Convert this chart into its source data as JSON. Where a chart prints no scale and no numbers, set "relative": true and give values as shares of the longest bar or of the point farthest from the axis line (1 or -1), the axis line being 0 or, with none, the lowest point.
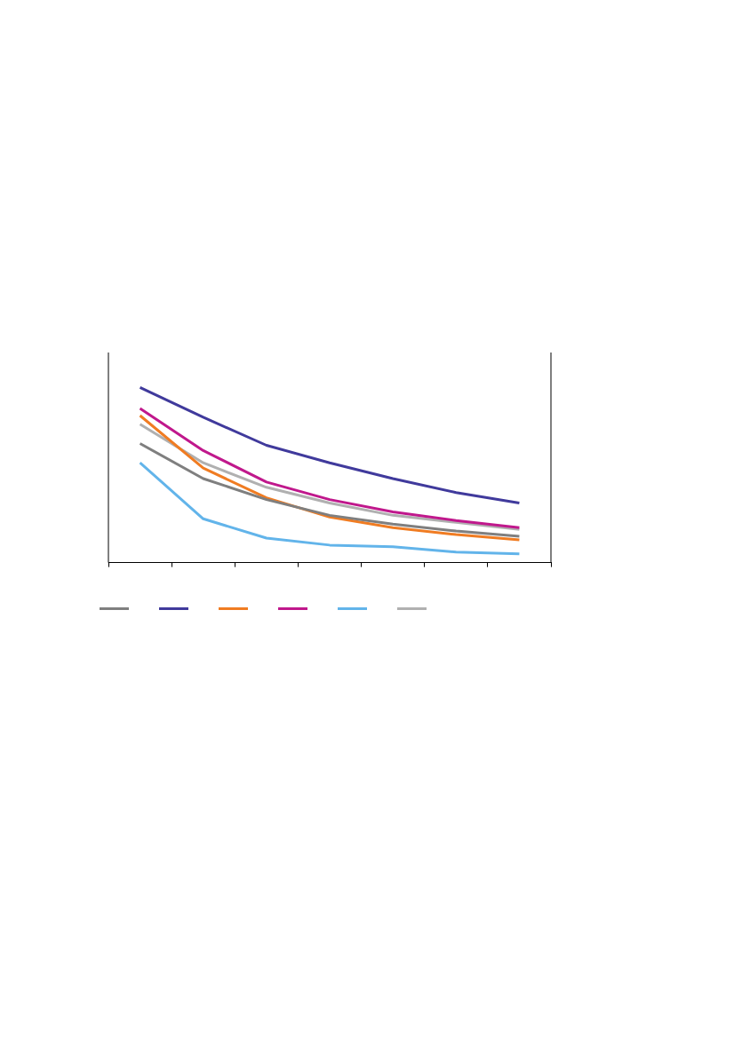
{
  "chart_data": {
    "type": "line",
    "relative": true,
    "categories": [
      null,
      null,
      null,
      null,
      null,
      null,
      null
    ],
    "marker": "none",
    "line_style": "solid",
    "series": [
      {
        "color": "#7f7f7f",
        "values": [
          0.68,
          0.48,
          0.36,
          0.27,
          0.22,
          0.18,
          0.15
        ]
      },
      {
        "color": "#403a9c",
        "values": [
          1,
          0.83,
          0.67,
          0.57,
          0.48,
          0.4,
          0.34
        ]
      },
      {
        "color": "#f07c22",
        "values": [
          0.84,
          0.54,
          0.37,
          0.26,
          0.2,
          0.16,
          0.13
        ]
      },
      {
        "color": "#c0188c",
        "values": [
          0.88,
          0.64,
          0.46,
          0.36,
          0.29,
          0.24,
          0.2
        ]
      },
      {
        "color": "#62b4ea",
        "values": [
          0.57,
          0.25,
          0.14,
          0.1,
          0.09,
          0.06,
          0.05
        ]
      },
      {
        "color": "#b0b0b0",
        "values": [
          0.79,
          0.57,
          0.43,
          0.34,
          0.27,
          0.23,
          0.19
        ]
      }
    ]
  }
}
